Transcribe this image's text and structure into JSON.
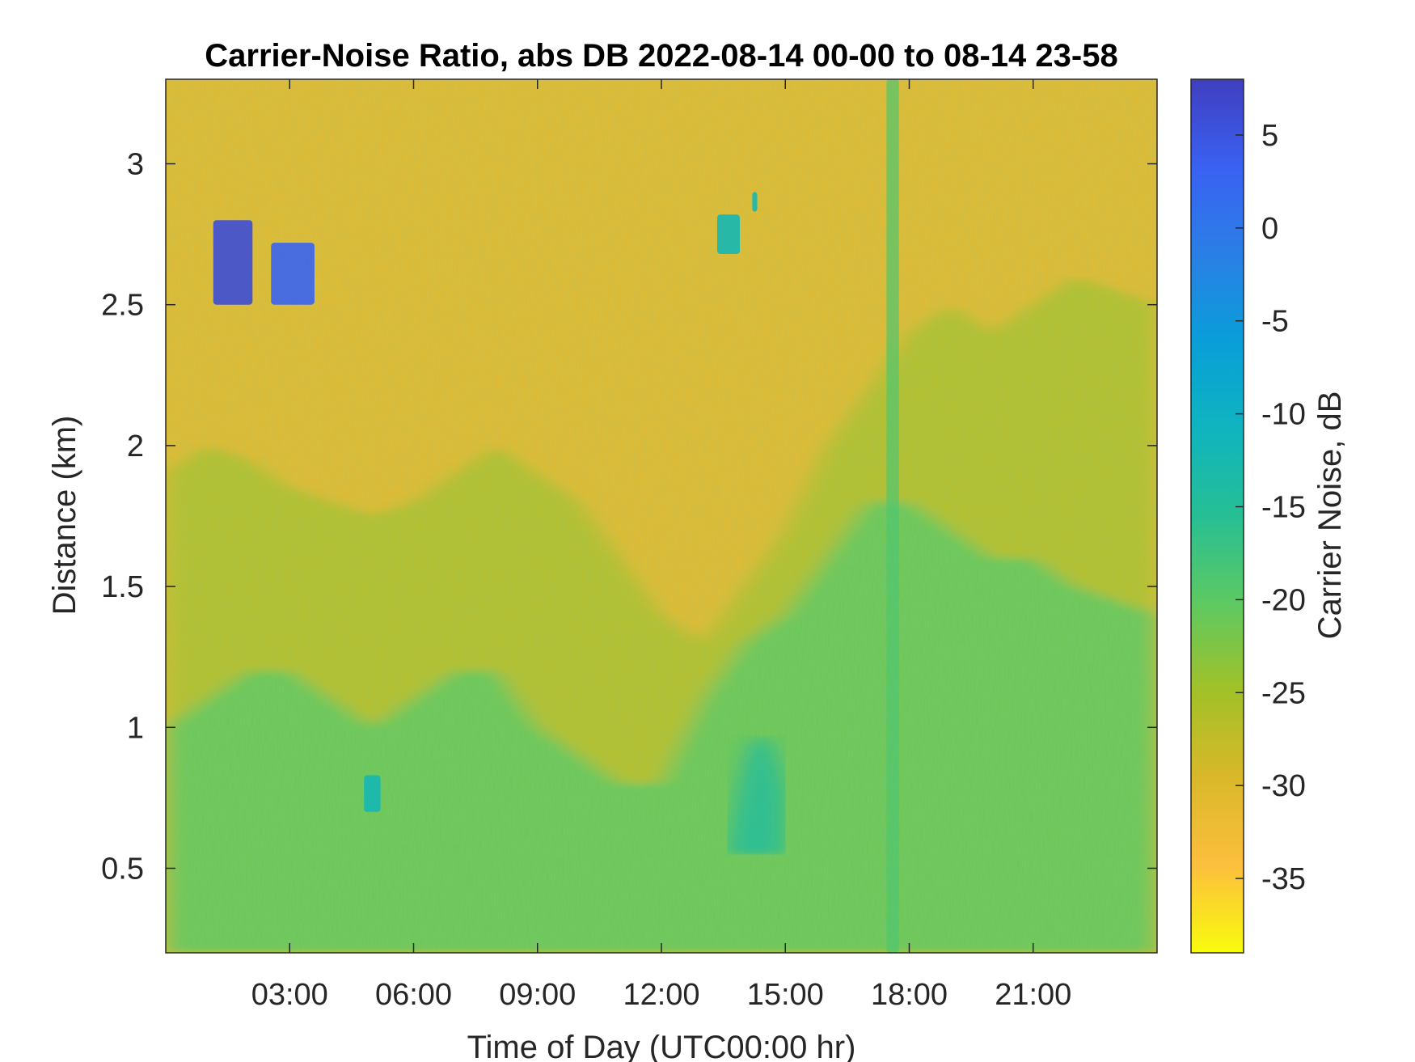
{
  "chart_data": {
    "type": "heatmap",
    "title": "Carrier-Noise Ratio, abs DB 2022-08-14 00-00 to 08-14 23-58",
    "xlabel": "Time of Day (UTC00:00 hr)",
    "ylabel": "Distance (km)",
    "colorbar_label": "Carrier Noise, dB",
    "x_unit": "hour of day",
    "xlim": [
      0,
      24
    ],
    "ylim": [
      0.2,
      3.3
    ],
    "clim": [
      -39,
      8
    ],
    "x_ticks": [
      3,
      6,
      9,
      12,
      15,
      18,
      21
    ],
    "x_tick_labels": [
      "03:00",
      "06:00",
      "09:00",
      "12:00",
      "15:00",
      "18:00",
      "21:00"
    ],
    "y_ticks": [
      0.5,
      1,
      1.5,
      2,
      2.5,
      3
    ],
    "y_tick_labels": [
      "0.5",
      "1",
      "1.5",
      "2",
      "2.5",
      "3"
    ],
    "colorbar_ticks": [
      5,
      0,
      -5,
      -10,
      -15,
      -20,
      -25,
      -30,
      -35
    ],
    "colorbar_tick_labels": [
      "5",
      "0",
      "-5",
      "-10",
      "-15",
      "-20",
      "-25",
      "-30",
      "-35"
    ],
    "colormap": "parula",
    "colormap_stops": [
      "#f9fb0e",
      "#fcbf3d",
      "#dab82a",
      "#a2c127",
      "#5ec962",
      "#26bf94",
      "#0fb4bf",
      "#099ed8",
      "#2a7fe6",
      "#3a61f2",
      "#403ebf"
    ],
    "grid": false,
    "background_cnr_db": -31,
    "grid_times_hr": [
      0,
      1,
      2,
      3,
      4,
      5,
      6,
      7,
      8,
      9,
      10,
      11,
      12,
      13,
      14,
      15,
      16,
      17,
      18,
      19,
      20,
      21,
      22,
      24
    ],
    "mixing_layer_top_km": [
      1.9,
      2.0,
      1.95,
      1.85,
      1.8,
      1.75,
      1.8,
      1.9,
      2.0,
      1.9,
      1.8,
      1.6,
      1.4,
      1.3,
      1.5,
      1.7,
      2.0,
      2.2,
      2.4,
      2.5,
      2.4,
      2.5,
      2.6,
      2.5
    ],
    "low_layer_top_km": [
      1.0,
      1.1,
      1.2,
      1.2,
      1.1,
      1.0,
      1.1,
      1.2,
      1.2,
      1.0,
      0.9,
      0.8,
      0.8,
      1.1,
      1.3,
      1.4,
      1.6,
      1.8,
      1.8,
      1.7,
      1.6,
      1.6,
      1.5,
      1.4
    ],
    "features": [
      {
        "kind": "cloud",
        "t0": 1.15,
        "t1": 2.1,
        "z0": 2.5,
        "z1": 2.8,
        "cnr_db": 6
      },
      {
        "kind": "cloud",
        "t0": 2.55,
        "t1": 3.6,
        "z0": 2.5,
        "z1": 2.72,
        "cnr_db": 3
      },
      {
        "kind": "cloud",
        "t0": 13.35,
        "t1": 13.9,
        "z0": 2.68,
        "z1": 2.82,
        "cnr_db": -12
      },
      {
        "kind": "cloud",
        "t0": 14.2,
        "t1": 14.32,
        "z0": 2.83,
        "z1": 2.9,
        "cnr_db": -12
      },
      {
        "kind": "cloud",
        "t0": 4.8,
        "t1": 5.2,
        "z0": 0.7,
        "z1": 0.83,
        "cnr_db": -12
      },
      {
        "kind": "plume",
        "t0": 13.6,
        "t1": 15.0,
        "z0": 0.55,
        "z1": 1.2,
        "cnr_db": -14
      },
      {
        "kind": "column",
        "t0": 17.45,
        "t1": 17.75,
        "z0": 0.2,
        "z1": 3.3,
        "cnr_db": -19
      }
    ]
  }
}
